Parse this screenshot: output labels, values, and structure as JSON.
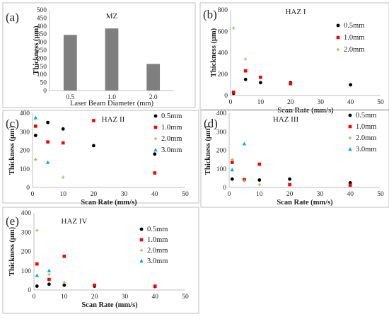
{
  "chart_data": [
    {
      "panel": "(a)",
      "type": "bar",
      "title": "MZ",
      "xlabel": "Laser Beam Diameter (mm)",
      "ylabel": "Thickness (μm)",
      "ylim": [
        0,
        500
      ],
      "yticks": [
        0,
        50,
        100,
        150,
        200,
        250,
        300,
        350,
        400,
        450,
        500
      ],
      "categories": [
        "0.5",
        "1.0",
        "2.0"
      ],
      "values": [
        345,
        385,
        165
      ],
      "grid": false,
      "colors": {
        "bar": "#7f7f7f"
      }
    },
    {
      "panel": "(b)",
      "type": "scatter",
      "title": "HAZ I",
      "xlabel": "Scan Rate (mm/s)",
      "ylabel": "Thickness (μm)",
      "xlim": [
        0,
        50
      ],
      "ylim": [
        0,
        800
      ],
      "xticks": [
        0,
        10,
        20,
        30,
        40,
        50
      ],
      "yticks": [
        0,
        200,
        400,
        600,
        800
      ],
      "legend": "top-right",
      "series": [
        {
          "name": "0.5mm",
          "marker": "circle",
          "color": "#000000",
          "points": [
            [
              1,
              20
            ],
            [
              5,
              150
            ],
            [
              10,
              120
            ],
            [
              20,
              120
            ],
            [
              40,
              100
            ]
          ]
        },
        {
          "name": "1.0mm",
          "marker": "square",
          "color": "#ff0000",
          "points": [
            [
              1,
              30
            ],
            [
              5,
              230
            ],
            [
              10,
              170
            ],
            [
              20,
              110
            ]
          ]
        },
        {
          "name": "2.0mm",
          "marker": "plus",
          "color": "#92d050",
          "points": [
            [
              1,
              630
            ],
            [
              5,
              340
            ]
          ]
        }
      ]
    },
    {
      "panel": "(c)",
      "type": "scatter",
      "title": "HAZ II",
      "xlabel": "Scan Rate (mm/s)",
      "ylabel": "Thickness (μm)",
      "xlim": [
        0,
        50
      ],
      "ylim": [
        0,
        400
      ],
      "xticks": [
        0,
        10,
        20,
        30,
        40,
        50
      ],
      "yticks": [
        0,
        100,
        200,
        300,
        400
      ],
      "legend": "top-right",
      "series": [
        {
          "name": "0.5mm",
          "marker": "circle",
          "color": "#000000",
          "points": [
            [
              1,
              280
            ],
            [
              5,
              350
            ],
            [
              10,
              315
            ],
            [
              20,
              225
            ],
            [
              40,
              180
            ]
          ]
        },
        {
          "name": "1.0mm",
          "marker": "square",
          "color": "#ff0000",
          "points": [
            [
              1,
              330
            ],
            [
              5,
              245
            ],
            [
              10,
              240
            ],
            [
              20,
              360
            ],
            [
              40,
              78
            ]
          ]
        },
        {
          "name": "2.0mm",
          "marker": "plus",
          "color": "#92d050",
          "points": [
            [
              1,
              150
            ],
            [
              10,
              55
            ]
          ]
        },
        {
          "name": "3.0mm",
          "marker": "triangle",
          "color": "#00b0f0",
          "points": [
            [
              1,
              375
            ],
            [
              5,
              135
            ]
          ]
        }
      ]
    },
    {
      "panel": "(d)",
      "type": "scatter",
      "title": "HAZ III",
      "xlabel": "Scan Rate (mm/s)",
      "ylabel": "Thickness (μm)",
      "xlim": [
        0,
        50
      ],
      "ylim": [
        0,
        400
      ],
      "xticks": [
        0,
        10,
        20,
        30,
        40,
        50
      ],
      "yticks": [
        0,
        100,
        200,
        300,
        400
      ],
      "legend": "top-right",
      "series": [
        {
          "name": "0.5mm",
          "marker": "circle",
          "color": "#000000",
          "points": [
            [
              1,
              45
            ],
            [
              5,
              40
            ],
            [
              10,
              40
            ],
            [
              20,
              45
            ],
            [
              40,
              25
            ]
          ]
        },
        {
          "name": "1.0mm",
          "marker": "square",
          "color": "#ff0000",
          "points": [
            [
              1,
              135
            ],
            [
              5,
              42
            ],
            [
              10,
              125
            ],
            [
              20,
              15
            ],
            [
              40,
              12
            ]
          ]
        },
        {
          "name": "2.0mm",
          "marker": "plus",
          "color": "#92d050",
          "points": [
            [
              1,
              150
            ],
            [
              5,
              35
            ],
            [
              10,
              15
            ]
          ]
        },
        {
          "name": "3.0mm",
          "marker": "triangle",
          "color": "#00b0f0",
          "points": [
            [
              1,
              95
            ],
            [
              5,
              235
            ]
          ]
        }
      ]
    },
    {
      "panel": "(e)",
      "type": "scatter",
      "title": "HAZ IV",
      "xlabel": "Scan Rate (mm/s)",
      "ylabel": "Thickness (μm)",
      "xlim": [
        0,
        50
      ],
      "ylim": [
        0,
        400
      ],
      "xticks": [
        0,
        10,
        20,
        30,
        40,
        50
      ],
      "yticks": [
        0,
        100,
        200,
        300,
        400
      ],
      "legend": "top-right",
      "series": [
        {
          "name": "0.5mm",
          "marker": "circle",
          "color": "#000000",
          "points": [
            [
              1,
              20
            ],
            [
              5,
              30
            ],
            [
              10,
              25
            ],
            [
              20,
              20
            ],
            [
              40,
              18
            ]
          ]
        },
        {
          "name": "1.0mm",
          "marker": "square",
          "color": "#ff0000",
          "points": [
            [
              1,
              135
            ],
            [
              5,
              55
            ],
            [
              10,
              175
            ],
            [
              20,
              25
            ],
            [
              40,
              20
            ]
          ]
        },
        {
          "name": "2.0mm",
          "marker": "plus",
          "color": "#92d050",
          "points": [
            [
              1,
              310
            ],
            [
              5,
              80
            ],
            [
              10,
              40
            ]
          ]
        },
        {
          "name": "3.0mm",
          "marker": "triangle",
          "color": "#00b0f0",
          "points": [
            [
              1,
              75
            ],
            [
              5,
              100
            ]
          ]
        }
      ]
    }
  ]
}
